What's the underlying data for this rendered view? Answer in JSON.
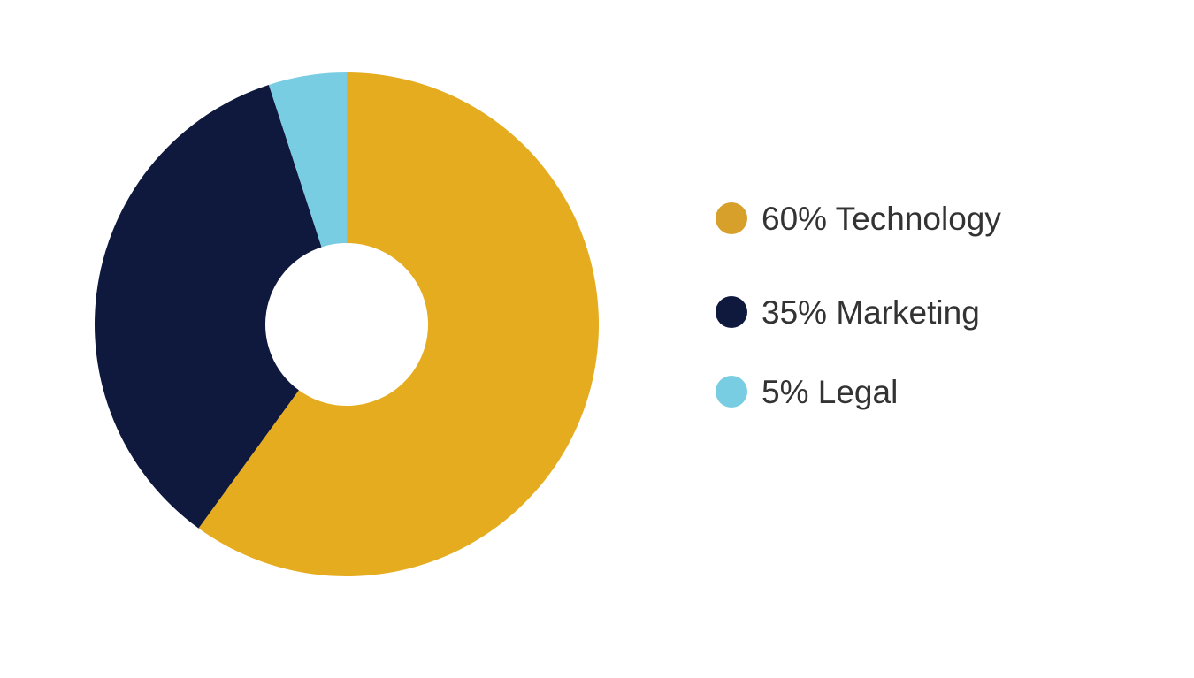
{
  "chart_data": {
    "type": "pie",
    "variant": "donut",
    "start_angle": "top, clockwise",
    "legend_position": "right",
    "slices": [
      {
        "label": "60% Technology",
        "category": "Technology",
        "value": 60,
        "color": "#E5AC20",
        "legend_color": "#D6A02B"
      },
      {
        "label": "35% Marketing",
        "category": "Marketing",
        "value": 35,
        "color": "#0F183D",
        "legend_color": "#0F183D"
      },
      {
        "label": "5% Legal",
        "category": "Legal",
        "value": 5,
        "color": "#79CDE2",
        "legend_color": "#79CDE2"
      }
    ]
  }
}
